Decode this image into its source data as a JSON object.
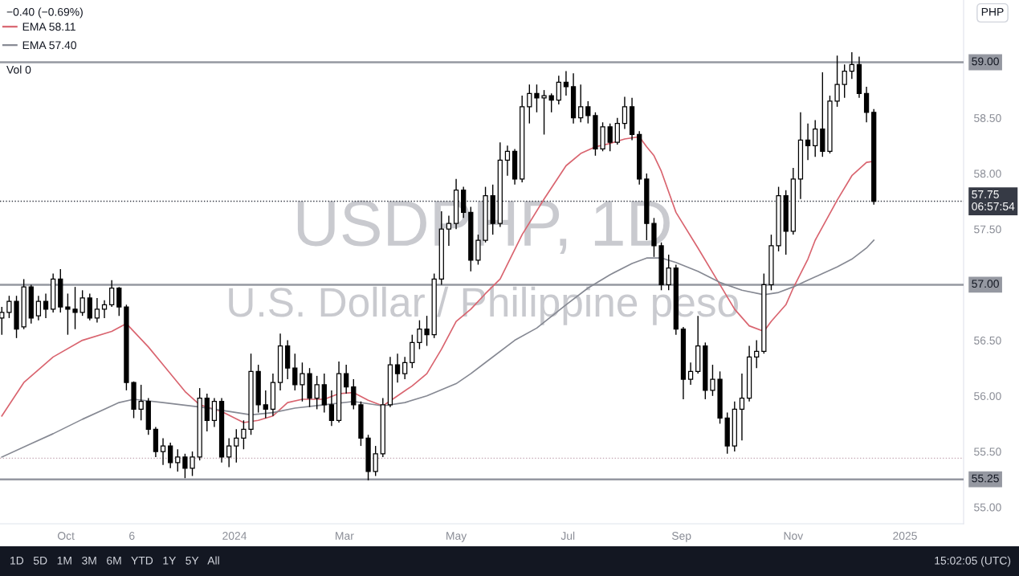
{
  "chart_data": {
    "type": "candlestick",
    "title": "USDPHP, 1D",
    "subtitle": "U.S. Dollar / Philippine peso",
    "color": "#000000",
    "x": [
      "2023-08-27",
      "2023-08-31",
      "2023-09-04",
      "2023-09-08",
      "2023-09-12",
      "2023-09-16",
      "2023-09-20",
      "2023-09-24",
      "2023-09-28",
      "2023-10-02",
      "2023-10-06",
      "2023-10-10",
      "2023-10-14",
      "2023-10-18",
      "2023-10-22",
      "2023-10-26",
      "2023-10-30",
      "2023-11-03",
      "2023-11-07",
      "2023-11-11",
      "2023-11-15",
      "2023-11-19",
      "2023-11-23",
      "2023-11-27",
      "2023-12-01",
      "2023-12-05",
      "2023-12-09",
      "2023-12-13",
      "2023-12-17",
      "2023-12-21",
      "2023-12-25",
      "2023-12-29",
      "2024-01-02",
      "2024-01-06",
      "2024-01-10",
      "2024-01-14",
      "2024-01-18",
      "2024-01-22",
      "2024-01-26",
      "2024-01-30",
      "2024-02-03",
      "2024-02-07",
      "2024-02-11",
      "2024-02-15",
      "2024-02-19",
      "2024-02-23",
      "2024-02-27",
      "2024-03-02",
      "2024-03-06",
      "2024-03-10",
      "2024-03-14",
      "2024-03-18",
      "2024-03-22",
      "2024-03-26",
      "2024-03-30",
      "2024-04-03",
      "2024-04-07",
      "2024-04-11",
      "2024-04-15",
      "2024-04-19",
      "2024-04-23",
      "2024-04-27",
      "2024-05-01",
      "2024-05-05",
      "2024-05-09",
      "2024-05-13",
      "2024-05-17",
      "2024-05-21",
      "2024-05-25",
      "2024-05-29",
      "2024-06-02",
      "2024-06-06",
      "2024-06-10",
      "2024-06-14",
      "2024-06-18",
      "2024-06-22",
      "2024-06-26",
      "2024-06-30",
      "2024-07-04",
      "2024-07-08",
      "2024-07-12",
      "2024-07-16",
      "2024-07-20",
      "2024-07-24",
      "2024-07-28",
      "2024-08-01",
      "2024-08-05",
      "2024-08-09",
      "2024-08-13",
      "2024-08-17",
      "2024-08-21",
      "2024-08-25",
      "2024-08-29",
      "2024-09-02",
      "2024-09-06",
      "2024-09-10",
      "2024-09-14",
      "2024-09-18",
      "2024-09-22",
      "2024-09-26",
      "2024-09-30",
      "2024-10-04",
      "2024-10-08",
      "2024-10-12",
      "2024-10-16",
      "2024-10-20",
      "2024-10-24",
      "2024-10-28",
      "2024-11-01",
      "2024-11-05",
      "2024-11-09",
      "2024-11-13",
      "2024-11-17",
      "2024-11-21",
      "2024-11-25",
      "2024-11-29",
      "2024-12-03",
      "2024-12-07",
      "2024-12-11",
      "2024-12-15"
    ],
    "ohlc": [
      [
        56.7,
        56.8,
        56.55,
        56.75
      ],
      [
        56.75,
        56.9,
        56.7,
        56.85
      ],
      [
        56.85,
        56.9,
        56.52,
        56.6
      ],
      [
        56.62,
        57.05,
        56.6,
        56.98
      ],
      [
        56.98,
        57.0,
        56.65,
        56.7
      ],
      [
        56.72,
        56.9,
        56.68,
        56.85
      ],
      [
        56.85,
        56.92,
        56.7,
        56.78
      ],
      [
        56.78,
        57.1,
        56.75,
        57.05
      ],
      [
        57.05,
        57.14,
        56.75,
        56.8
      ],
      [
        56.8,
        56.92,
        56.55,
        56.78
      ],
      [
        56.78,
        56.98,
        56.6,
        56.75
      ],
      [
        56.75,
        56.95,
        56.72,
        56.88
      ],
      [
        56.88,
        56.92,
        56.68,
        56.7
      ],
      [
        56.7,
        56.88,
        56.66,
        56.78
      ],
      [
        56.78,
        56.86,
        56.7,
        56.82
      ],
      [
        56.82,
        57.04,
        56.8,
        56.97
      ],
      [
        56.97,
        56.98,
        56.72,
        56.8
      ],
      [
        56.8,
        56.82,
        56.05,
        56.12
      ],
      [
        56.12,
        56.13,
        55.8,
        55.88
      ],
      [
        55.88,
        56.1,
        55.78,
        55.95
      ],
      [
        55.95,
        55.98,
        55.65,
        55.7
      ],
      [
        55.7,
        55.72,
        55.45,
        55.5
      ],
      [
        55.5,
        55.62,
        55.38,
        55.55
      ],
      [
        55.55,
        55.58,
        55.35,
        55.4
      ],
      [
        55.4,
        55.52,
        55.32,
        55.45
      ],
      [
        55.45,
        55.48,
        55.26,
        55.35
      ],
      [
        55.35,
        55.5,
        55.28,
        55.45
      ],
      [
        55.45,
        56.07,
        55.42,
        55.98
      ],
      [
        55.98,
        56.02,
        55.68,
        55.78
      ],
      [
        55.78,
        55.98,
        55.72,
        55.95
      ],
      [
        55.95,
        55.98,
        55.4,
        55.45
      ],
      [
        55.45,
        55.62,
        55.36,
        55.55
      ],
      [
        55.55,
        55.7,
        55.4,
        55.62
      ],
      [
        55.62,
        55.78,
        55.52,
        55.7
      ],
      [
        55.7,
        56.38,
        55.65,
        56.22
      ],
      [
        56.22,
        56.28,
        55.85,
        55.92
      ],
      [
        55.92,
        56.05,
        55.8,
        55.88
      ],
      [
        55.88,
        56.2,
        55.82,
        56.12
      ],
      [
        56.12,
        56.56,
        56.05,
        56.45
      ],
      [
        56.45,
        56.5,
        56.15,
        56.25
      ],
      [
        56.25,
        56.38,
        56.05,
        56.1
      ],
      [
        56.1,
        56.3,
        55.95,
        56.2
      ],
      [
        56.2,
        56.25,
        55.9,
        55.98
      ],
      [
        55.98,
        56.18,
        55.88,
        56.1
      ],
      [
        56.1,
        56.2,
        55.85,
        55.92
      ],
      [
        55.92,
        56.05,
        55.73,
        55.78
      ],
      [
        55.78,
        56.31,
        55.76,
        56.2
      ],
      [
        56.2,
        56.28,
        56.02,
        56.08
      ],
      [
        56.08,
        56.15,
        55.88,
        55.92
      ],
      [
        55.92,
        55.95,
        55.55,
        55.62
      ],
      [
        55.62,
        55.65,
        55.24,
        55.32
      ],
      [
        55.32,
        55.55,
        55.28,
        55.48
      ],
      [
        55.48,
        55.98,
        55.45,
        55.92
      ],
      [
        55.92,
        56.35,
        55.9,
        56.28
      ],
      [
        56.28,
        56.38,
        56.12,
        56.2
      ],
      [
        56.2,
        56.35,
        56.15,
        56.3
      ],
      [
        56.3,
        56.55,
        56.25,
        56.48
      ],
      [
        56.48,
        56.68,
        56.42,
        56.6
      ],
      [
        56.6,
        56.72,
        56.45,
        56.55
      ],
      [
        56.55,
        57.1,
        56.52,
        57.05
      ],
      [
        57.05,
        57.66,
        57.0,
        57.5
      ],
      [
        57.5,
        57.62,
        57.35,
        57.55
      ],
      [
        57.55,
        57.95,
        57.5,
        57.85
      ],
      [
        57.85,
        57.88,
        57.6,
        57.65
      ],
      [
        57.65,
        57.7,
        57.12,
        57.22
      ],
      [
        57.22,
        57.45,
        57.18,
        57.4
      ],
      [
        57.4,
        57.88,
        57.38,
        57.8
      ],
      [
        57.8,
        57.9,
        57.45,
        57.55
      ],
      [
        57.55,
        58.28,
        57.52,
        58.12
      ],
      [
        58.12,
        58.25,
        57.98,
        58.2
      ],
      [
        58.2,
        58.22,
        57.9,
        57.95
      ],
      [
        57.95,
        58.7,
        57.92,
        58.6
      ],
      [
        58.6,
        58.8,
        58.45,
        58.72
      ],
      [
        58.72,
        58.8,
        58.55,
        58.68
      ],
      [
        58.68,
        58.75,
        58.35,
        58.7
      ],
      [
        58.7,
        58.72,
        58.55,
        58.66
      ],
      [
        58.66,
        58.88,
        58.62,
        58.82
      ],
      [
        58.82,
        58.92,
        58.7,
        58.78
      ],
      [
        58.78,
        58.9,
        58.45,
        58.5
      ],
      [
        58.5,
        58.8,
        58.46,
        58.6
      ],
      [
        58.6,
        58.65,
        58.45,
        58.52
      ],
      [
        58.52,
        58.55,
        58.16,
        58.22
      ],
      [
        58.22,
        58.46,
        58.2,
        58.42
      ],
      [
        58.42,
        58.45,
        58.2,
        58.28
      ],
      [
        58.28,
        58.5,
        58.26,
        58.45
      ],
      [
        58.45,
        58.69,
        58.4,
        58.6
      ],
      [
        58.6,
        58.68,
        58.3,
        58.35
      ],
      [
        58.35,
        58.38,
        57.9,
        57.95
      ],
      [
        57.95,
        58.0,
        57.4,
        57.55
      ],
      [
        57.55,
        57.6,
        57.25,
        57.35
      ],
      [
        57.35,
        57.38,
        56.95,
        57.0
      ],
      [
        57.0,
        57.27,
        56.95,
        57.15
      ],
      [
        57.15,
        57.18,
        56.55,
        56.6
      ],
      [
        56.6,
        56.62,
        55.97,
        56.15
      ],
      [
        56.15,
        56.3,
        56.1,
        56.22
      ],
      [
        56.22,
        56.72,
        56.2,
        56.45
      ],
      [
        56.45,
        56.48,
        55.97,
        56.05
      ],
      [
        56.05,
        56.28,
        56.0,
        56.15
      ],
      [
        56.15,
        56.22,
        55.75,
        55.8
      ],
      [
        55.8,
        55.85,
        55.48,
        55.55
      ],
      [
        55.55,
        55.95,
        55.5,
        55.88
      ],
      [
        55.88,
        56.2,
        55.6,
        55.98
      ],
      [
        55.98,
        56.45,
        55.95,
        56.35
      ],
      [
        56.35,
        56.5,
        56.25,
        56.4
      ],
      [
        56.4,
        57.1,
        56.38,
        57.0
      ],
      [
        57.0,
        57.45,
        56.95,
        57.35
      ],
      [
        57.35,
        57.88,
        57.3,
        57.8
      ],
      [
        57.8,
        57.85,
        57.27,
        57.48
      ],
      [
        57.48,
        58.05,
        57.45,
        57.95
      ],
      [
        57.95,
        58.55,
        57.77,
        58.3
      ],
      [
        58.3,
        58.45,
        58.12,
        58.25
      ],
      [
        58.25,
        58.48,
        58.15,
        58.4
      ],
      [
        58.4,
        58.91,
        58.15,
        58.2
      ],
      [
        58.2,
        58.7,
        58.18,
        58.65
      ],
      [
        58.65,
        59.06,
        58.6,
        58.8
      ],
      [
        58.8,
        58.98,
        58.68,
        58.92
      ],
      [
        58.92,
        59.09,
        58.85,
        58.98
      ],
      [
        58.98,
        59.05,
        58.68,
        58.72
      ],
      [
        58.72,
        58.78,
        58.46,
        58.55
      ],
      [
        58.55,
        58.58,
        57.72,
        57.75
      ]
    ],
    "series": [
      {
        "name": "EMA 58.11",
        "type": "line",
        "color": "#d9646f",
        "x": [
          "2023-08-27",
          "2023-09-08",
          "2023-09-24",
          "2023-10-10",
          "2023-10-26",
          "2023-11-03",
          "2023-11-15",
          "2023-11-23",
          "2023-12-05",
          "2023-12-13",
          "2023-12-25",
          "2024-01-06",
          "2024-01-14",
          "2024-01-22",
          "2024-01-30",
          "2024-02-07",
          "2024-02-19",
          "2024-02-27",
          "2024-03-06",
          "2024-03-14",
          "2024-03-22",
          "2024-03-30",
          "2024-04-07",
          "2024-04-15",
          "2024-04-23",
          "2024-05-01",
          "2024-05-09",
          "2024-05-17",
          "2024-05-25",
          "2024-06-06",
          "2024-06-18",
          "2024-06-30",
          "2024-07-08",
          "2024-07-16",
          "2024-07-24",
          "2024-08-01",
          "2024-08-09",
          "2024-08-13",
          "2024-08-17",
          "2024-08-21",
          "2024-08-29",
          "2024-09-10",
          "2024-09-22",
          "2024-09-30",
          "2024-10-08",
          "2024-10-16",
          "2024-10-20",
          "2024-10-28",
          "2024-11-01",
          "2024-11-05",
          "2024-11-09",
          "2024-11-13",
          "2024-11-17",
          "2024-11-25",
          "2024-12-03",
          "2024-12-11",
          "2024-12-15"
        ],
        "values": [
          55.82,
          56.12,
          56.35,
          56.5,
          56.58,
          56.65,
          56.44,
          56.28,
          56.04,
          55.92,
          55.86,
          55.76,
          55.78,
          55.82,
          55.94,
          55.97,
          55.97,
          56.02,
          56.03,
          55.96,
          55.91,
          56.0,
          56.09,
          56.2,
          56.42,
          56.67,
          56.78,
          56.92,
          57.05,
          57.45,
          57.77,
          58.07,
          58.18,
          58.24,
          58.27,
          58.31,
          58.33,
          58.24,
          58.16,
          58.02,
          57.65,
          57.33,
          57.0,
          56.78,
          56.63,
          56.58,
          56.67,
          56.82,
          56.97,
          57.1,
          57.23,
          57.4,
          57.52,
          57.76,
          57.98,
          58.1,
          58.11
        ]
      },
      {
        "name": "EMA 57.40",
        "type": "line",
        "color": "#868993",
        "x": [
          "2023-08-27",
          "2023-09-12",
          "2023-09-24",
          "2023-10-10",
          "2023-10-30",
          "2023-11-07",
          "2023-11-23",
          "2023-12-13",
          "2023-12-29",
          "2024-01-10",
          "2024-01-22",
          "2024-02-03",
          "2024-02-19",
          "2024-03-06",
          "2024-03-22",
          "2024-04-03",
          "2024-04-15",
          "2024-05-01",
          "2024-05-09",
          "2024-05-17",
          "2024-06-02",
          "2024-06-14",
          "2024-06-30",
          "2024-07-12",
          "2024-07-24",
          "2024-08-05",
          "2024-08-13",
          "2024-08-21",
          "2024-08-29",
          "2024-09-10",
          "2024-09-22",
          "2024-10-04",
          "2024-10-16",
          "2024-10-24",
          "2024-11-01",
          "2024-11-09",
          "2024-11-17",
          "2024-11-25",
          "2024-12-03",
          "2024-12-11",
          "2024-12-15"
        ],
        "values": [
          55.45,
          55.57,
          55.66,
          55.79,
          55.94,
          55.97,
          55.94,
          55.9,
          55.86,
          55.83,
          55.85,
          55.89,
          55.92,
          55.95,
          55.91,
          55.94,
          56.0,
          56.11,
          56.2,
          56.3,
          56.5,
          56.61,
          56.82,
          56.97,
          57.09,
          57.19,
          57.24,
          57.24,
          57.2,
          57.12,
          57.02,
          56.95,
          56.91,
          56.93,
          56.98,
          57.04,
          57.1,
          57.16,
          57.23,
          57.33,
          57.4
        ]
      }
    ],
    "xlim": [
      "2023-08-26",
      "2025-02-02"
    ],
    "xticks": [
      {
        "value": "2023-10-01",
        "label": "Oct"
      },
      {
        "value": "2023-11-06",
        "label": "6"
      },
      {
        "value": "2024-01-01",
        "label": "2024"
      },
      {
        "value": "2024-03-01",
        "label": "Mar"
      },
      {
        "value": "2024-05-01",
        "label": "May"
      },
      {
        "value": "2024-07-01",
        "label": "Jul"
      },
      {
        "value": "2024-09-01",
        "label": "Sep"
      },
      {
        "value": "2024-11-01",
        "label": "Nov"
      },
      {
        "value": "2025-01-01",
        "label": "2025"
      }
    ],
    "ylim": [
      54.85,
      59.56
    ],
    "yticks": [
      {
        "value": 55,
        "label": "55.00"
      },
      {
        "value": 55.5,
        "label": "55.50"
      },
      {
        "value": 56,
        "label": "56.00"
      },
      {
        "value": 56.5,
        "label": "56.50"
      },
      {
        "value": 57.5,
        "label": "57.50"
      },
      {
        "value": 58,
        "label": "58.00"
      },
      {
        "value": 58.5,
        "label": "58.50"
      }
    ],
    "ref_lines": [
      {
        "axis": "y",
        "value": 59.0,
        "label": "59.00",
        "color": "#9598a1",
        "line_style": "solid"
      },
      {
        "axis": "y",
        "value": 57.0,
        "label": "57.00",
        "color": "#9598a1",
        "line_style": "solid"
      },
      {
        "axis": "y",
        "value": 55.25,
        "label": "55.25",
        "color": "#9598a1",
        "line_style": "solid"
      },
      {
        "axis": "y",
        "value": 57.75,
        "label": "57.75\n06:57:54",
        "color": "#363a45",
        "line_style": "dotted"
      },
      {
        "axis": "y",
        "value": 55.44,
        "color": "#c4a7b4",
        "line_style": "dotted"
      }
    ],
    "legend": "top left",
    "annotations": [
      "−0.40 (−0.69%)",
      "Vol 0",
      "PHP",
      "1D   5D   1M   3M   6M   YTD   1Y   5Y   All",
      "15:02:05 (UTC)"
    ]
  }
}
